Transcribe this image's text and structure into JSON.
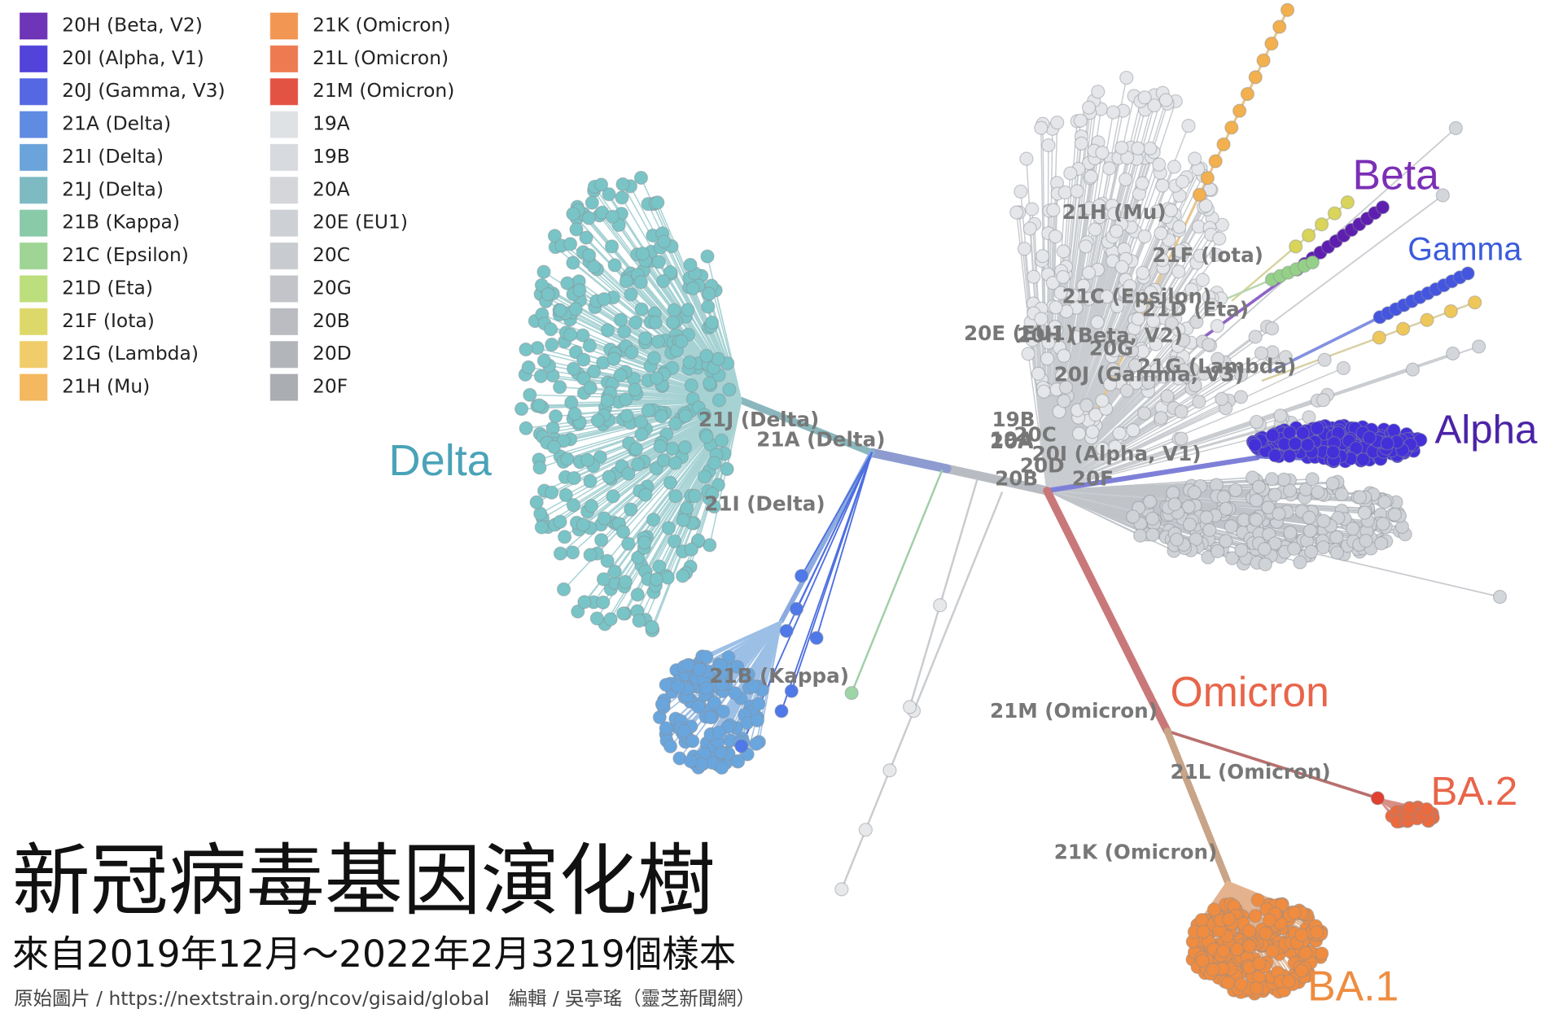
{
  "legend": [
    {
      "label": "20H (Beta, V2)",
      "color": "#5e1fb0"
    },
    {
      "label": "20I (Alpha, V1)",
      "color": "#3f2fd6"
    },
    {
      "label": "20J (Gamma, V3)",
      "color": "#4456e0"
    },
    {
      "label": "21A (Delta)",
      "color": "#4f7ee0"
    },
    {
      "label": "21I (Delta)",
      "color": "#5b9ad6"
    },
    {
      "label": "21J (Delta)",
      "color": "#6fb3bb"
    },
    {
      "label": "21B (Kappa)",
      "color": "#7cc4a0"
    },
    {
      "label": "21C (Epsilon)",
      "color": "#95d088"
    },
    {
      "label": "21D (Eta)",
      "color": "#b6da6e"
    },
    {
      "label": "21F (Iota)",
      "color": "#d9d45a"
    },
    {
      "label": "21G (Lambda)",
      "color": "#eec75a"
    },
    {
      "label": "21H (Mu)",
      "color": "#f2b04f"
    },
    {
      "label": "21K (Omicron)",
      "color": "#ef8c40"
    },
    {
      "label": "21L (Omicron)",
      "color": "#ec6b3e"
    },
    {
      "label": "21M (Omicron)",
      "color": "#e0402f"
    },
    {
      "label": "19A",
      "color": "#dcdfe2"
    },
    {
      "label": "19B",
      "color": "#d3d6da"
    },
    {
      "label": "20A",
      "color": "#cfd2d6"
    },
    {
      "label": "20E (EU1)",
      "color": "#c8cbd0"
    },
    {
      "label": "20C",
      "color": "#c2c5ca"
    },
    {
      "label": "20G",
      "color": "#bbbec3"
    },
    {
      "label": "20B",
      "color": "#b2b5bb"
    },
    {
      "label": "20D",
      "color": "#aaadb3"
    },
    {
      "label": "20F",
      "color": "#a1a4aa"
    }
  ],
  "clade_labels": [
    "21J (Delta)",
    "21A (Delta)",
    "21I (Delta)",
    "21B (Kappa)",
    "21H (Mu)",
    "21F (Iota)",
    "21C (Epsilon)",
    "21D (Eta)",
    "20E (EU1)",
    "20H (Beta, V2)",
    "20G",
    "21G (Lambda)",
    "20J (Gamma, V3)",
    "19B",
    "19A",
    "20C",
    "20A",
    "20I (Alpha, V1)",
    "20D",
    "20B",
    "20F",
    "21M (Omicron)",
    "21L (Omicron)",
    "21K (Omicron)"
  ],
  "lineage_labels": [
    {
      "text": "Delta",
      "color": "#4aa3b8"
    },
    {
      "text": "Beta",
      "color": "#7b2fb5"
    },
    {
      "text": "Gamma",
      "color": "#3a5bdc"
    },
    {
      "text": "Alpha",
      "color": "#4b23a8"
    },
    {
      "text": "Omicron",
      "color": "#e8654a"
    },
    {
      "text": "BA.2",
      "color": "#e8654a"
    },
    {
      "text": "BA.1",
      "color": "#ef8c40"
    }
  ],
  "title": "新冠病毒基因演化樹",
  "subtitle": "來自2019年12月～2022年2月3219個樣本",
  "source": "原始圖片 / https://nextstrain.org/ncov/gisaid/global　編輯 / 吳亭瑤（靈芝新聞網）"
}
